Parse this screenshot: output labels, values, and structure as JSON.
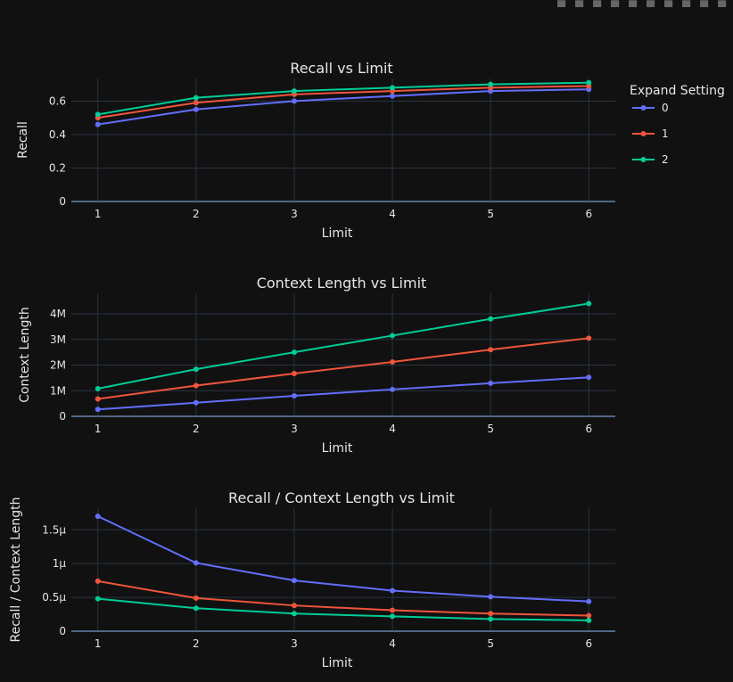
{
  "modebar": [
    "camera-icon",
    "zoom-icon",
    "pan-icon",
    "box-select-icon",
    "lasso-icon",
    "zoom-in-icon",
    "zoom-out-icon",
    "autoscale-icon",
    "home-icon",
    "plotly-logo-icon"
  ],
  "legend": {
    "title": "Expand Setting",
    "placement": "top-right"
  },
  "colors": {
    "0": "#636efa",
    "1": "#ef553b",
    "2": "#00cc96",
    "background": "#111111",
    "grid": "#283442"
  },
  "chart_data": [
    {
      "type": "line",
      "title": "Recall vs Limit",
      "xlabel": "Limit",
      "ylabel": "Recall",
      "x": [
        1,
        2,
        3,
        4,
        5,
        6
      ],
      "xticks": [
        "1",
        "2",
        "3",
        "4",
        "5",
        "6"
      ],
      "yticks": [
        {
          "v": 0,
          "label": "0"
        },
        {
          "v": 0.2,
          "label": "0.2"
        },
        {
          "v": 0.4,
          "label": "0.4"
        },
        {
          "v": 0.6,
          "label": "0.6"
        }
      ],
      "ylim": [
        0,
        0.735
      ],
      "grid": true,
      "series": [
        {
          "name": "0",
          "values": [
            0.46,
            0.55,
            0.6,
            0.63,
            0.66,
            0.67
          ]
        },
        {
          "name": "1",
          "values": [
            0.5,
            0.59,
            0.64,
            0.66,
            0.68,
            0.69
          ]
        },
        {
          "name": "2",
          "values": [
            0.52,
            0.62,
            0.66,
            0.68,
            0.7,
            0.71
          ]
        }
      ]
    },
    {
      "type": "line",
      "title": "Context Length vs Limit",
      "xlabel": "Limit",
      "ylabel": "Context Length",
      "x": [
        1,
        2,
        3,
        4,
        5,
        6
      ],
      "xticks": [
        "1",
        "2",
        "3",
        "4",
        "5",
        "6"
      ],
      "yticks": [
        {
          "v": 0,
          "label": "0"
        },
        {
          "v": 1000000,
          "label": "1M"
        },
        {
          "v": 2000000,
          "label": "2M"
        },
        {
          "v": 3000000,
          "label": "3M"
        },
        {
          "v": 4000000,
          "label": "4M"
        }
      ],
      "ylim": [
        0,
        4800000
      ],
      "grid": true,
      "series": [
        {
          "name": "0",
          "values": [
            270000,
            530000,
            800000,
            1050000,
            1290000,
            1520000
          ]
        },
        {
          "name": "1",
          "values": [
            680000,
            1200000,
            1670000,
            2120000,
            2600000,
            3050000
          ]
        },
        {
          "name": "2",
          "values": [
            1080000,
            1840000,
            2500000,
            3150000,
            3800000,
            4400000
          ]
        }
      ]
    },
    {
      "type": "line",
      "title": "Recall / Context Length vs Limit",
      "xlabel": "Limit",
      "ylabel": "Recall / Context Length",
      "x": [
        1,
        2,
        3,
        4,
        5,
        6
      ],
      "xticks": [
        "1",
        "2",
        "3",
        "4",
        "5",
        "6"
      ],
      "yticks": [
        {
          "v": 0,
          "label": "0"
        },
        {
          "v": 5e-07,
          "label": "0.5μ"
        },
        {
          "v": 1e-06,
          "label": "1μ"
        },
        {
          "v": 1.5e-06,
          "label": "1.5μ"
        }
      ],
      "ylim": [
        0,
        1.82e-06
      ],
      "grid": true,
      "series": [
        {
          "name": "0",
          "values": [
            1.7e-06,
            1.01e-06,
            7.5e-07,
            6e-07,
            5.1e-07,
            4.4e-07
          ]
        },
        {
          "name": "1",
          "values": [
            7.4e-07,
            4.9e-07,
            3.8e-07,
            3.1e-07,
            2.6e-07,
            2.3e-07
          ]
        },
        {
          "name": "2",
          "values": [
            4.8e-07,
            3.4e-07,
            2.6e-07,
            2.2e-07,
            1.8e-07,
            1.6e-07
          ]
        }
      ]
    }
  ]
}
